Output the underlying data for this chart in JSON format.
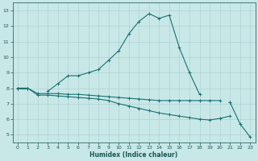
{
  "title": "",
  "xlabel": "Humidex (Indice chaleur)",
  "bg_color": "#c8e8e8",
  "grid_color": "#aabbbb",
  "line_color": "#1a7070",
  "hours": [
    0,
    1,
    2,
    3,
    4,
    5,
    6,
    7,
    8,
    9,
    10,
    11,
    12,
    13,
    14,
    15,
    16,
    17,
    18,
    19,
    20,
    21,
    22,
    23
  ],
  "line_max": [
    8.0,
    8.0,
    null,
    7.8,
    8.3,
    8.8,
    8.8,
    9.0,
    9.2,
    9.8,
    10.4,
    11.5,
    12.3,
    12.8,
    12.5,
    12.7,
    10.6,
    9.0,
    7.6,
    null,
    null,
    7.1,
    null,
    null
  ],
  "line_mean": [
    8.0,
    8.0,
    7.65,
    7.65,
    7.65,
    7.6,
    7.6,
    7.55,
    7.5,
    7.45,
    7.4,
    7.35,
    7.3,
    7.25,
    7.2,
    7.2,
    7.2,
    7.2,
    7.2,
    7.2,
    7.2,
    null,
    null,
    null
  ],
  "line_min": [
    8.0,
    8.0,
    7.55,
    7.55,
    7.5,
    7.45,
    7.4,
    7.35,
    7.3,
    7.2,
    7.0,
    6.85,
    6.7,
    6.55,
    6.4,
    6.3,
    6.2,
    6.1,
    6.0,
    5.95,
    6.05,
    6.2,
    null,
    null
  ],
  "line_tri": [
    null,
    null,
    null,
    null,
    null,
    null,
    null,
    null,
    null,
    null,
    null,
    null,
    null,
    null,
    null,
    null,
    null,
    null,
    null,
    null,
    null,
    7.1,
    5.7,
    4.85
  ],
  "ylim": [
    4.5,
    13.5
  ],
  "xlim": [
    -0.5,
    23.5
  ],
  "yticks": [
    5,
    6,
    7,
    8,
    9,
    10,
    11,
    12,
    13
  ],
  "xticks": [
    0,
    1,
    2,
    3,
    4,
    5,
    6,
    7,
    8,
    9,
    10,
    11,
    12,
    13,
    14,
    15,
    16,
    17,
    18,
    19,
    20,
    21,
    22,
    23
  ]
}
